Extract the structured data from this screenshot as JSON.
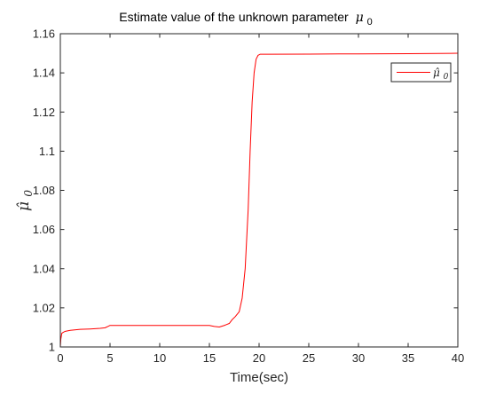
{
  "chart_data": {
    "type": "line",
    "title": "Estimate value of the unknown parameter",
    "title_symbol": "μ",
    "title_symbol_sub": "0",
    "xlabel": "Time(sec)",
    "ylabel": "μ̂",
    "ylabel_sub": "0",
    "xlim": [
      0,
      40
    ],
    "ylim": [
      1,
      1.16
    ],
    "xticks": [
      0,
      5,
      10,
      15,
      20,
      25,
      30,
      35,
      40
    ],
    "yticks": [
      1,
      1.02,
      1.04,
      1.06,
      1.08,
      1.1,
      1.12,
      1.14,
      1.16
    ],
    "xtick_labels": [
      "0",
      "5",
      "10",
      "15",
      "20",
      "25",
      "30",
      "35",
      "40"
    ],
    "ytick_labels": [
      "1",
      "1.02",
      "1.04",
      "1.06",
      "1.08",
      "1.1",
      "1.12",
      "1.14",
      "1.16"
    ],
    "grid": false,
    "legend_position": "top-right",
    "colors": {
      "series": "#ff0000",
      "axes": "#262626"
    },
    "series": [
      {
        "name": "μ̂",
        "name_sub": "0",
        "color": "#ff0000",
        "x": [
          0,
          0.05,
          0.15,
          0.3,
          0.5,
          1,
          2,
          3,
          4,
          4.5,
          4.8,
          5,
          6,
          8,
          10,
          12,
          14,
          15,
          15.5,
          16,
          16.5,
          17,
          17.3,
          17.6,
          18,
          18.3,
          18.6,
          18.9,
          19.1,
          19.3,
          19.5,
          19.7,
          19.9,
          20.1,
          20.5,
          21,
          25,
          30,
          35,
          40
        ],
        "y": [
          1.0,
          1.004,
          1.007,
          1.0075,
          1.008,
          1.0085,
          1.009,
          1.0092,
          1.0095,
          1.0098,
          1.0105,
          1.011,
          1.011,
          1.011,
          1.011,
          1.011,
          1.011,
          1.011,
          1.0105,
          1.0102,
          1.011,
          1.012,
          1.014,
          1.0155,
          1.018,
          1.025,
          1.04,
          1.07,
          1.1,
          1.125,
          1.14,
          1.147,
          1.149,
          1.1495,
          1.1495,
          1.1495,
          1.1496,
          1.1497,
          1.1498,
          1.15
        ]
      }
    ]
  }
}
